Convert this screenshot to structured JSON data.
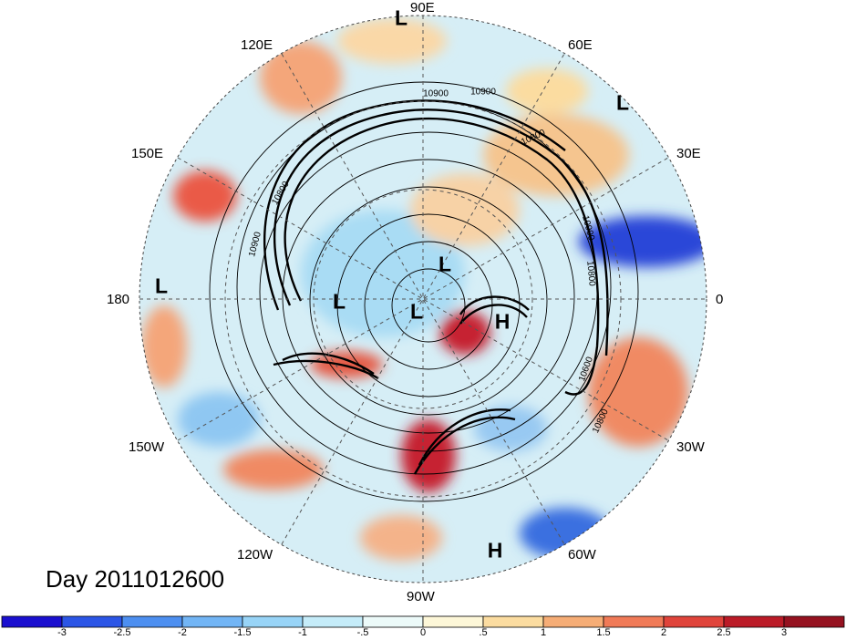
{
  "title": "Day 2011012600",
  "longitude_labels": [
    {
      "id": "lon-90e",
      "text": "90E"
    },
    {
      "id": "lon-60e",
      "text": "60E"
    },
    {
      "id": "lon-30e",
      "text": "30E"
    },
    {
      "id": "lon-0",
      "text": "0"
    },
    {
      "id": "lon-30w",
      "text": "30W"
    },
    {
      "id": "lon-60w",
      "text": "60W"
    },
    {
      "id": "lon-90w",
      "text": "90W"
    },
    {
      "id": "lon-120w",
      "text": "120W"
    },
    {
      "id": "lon-150w",
      "text": "150W"
    },
    {
      "id": "lon-180",
      "text": "180"
    },
    {
      "id": "lon-150e",
      "text": "150E"
    },
    {
      "id": "lon-120e",
      "text": "120E"
    }
  ],
  "pressure_centers": [
    "L",
    "L",
    "L",
    "L",
    "L",
    "L",
    "H",
    "H"
  ],
  "contour_labels": [
    "10900",
    "10900",
    "10800",
    "10900",
    "10800",
    "10900",
    "10800",
    "10600",
    "10800"
  ],
  "colorbar": {
    "labels": [
      "-3",
      "-2.5",
      "-2",
      "-1.5",
      "-1",
      "-.5",
      "0",
      ".5",
      "1",
      "1.5",
      "2",
      "2.5",
      "3"
    ],
    "colors": [
      "#1a0fcf",
      "#2b55e6",
      "#4d8ff0",
      "#72b5f5",
      "#98d4f7",
      "#c5ecf9",
      "#ecfaf9",
      "#fdf7d8",
      "#fbdca0",
      "#f6ad76",
      "#f07a57",
      "#e0443b",
      "#bb1b27",
      "#951220"
    ]
  }
}
